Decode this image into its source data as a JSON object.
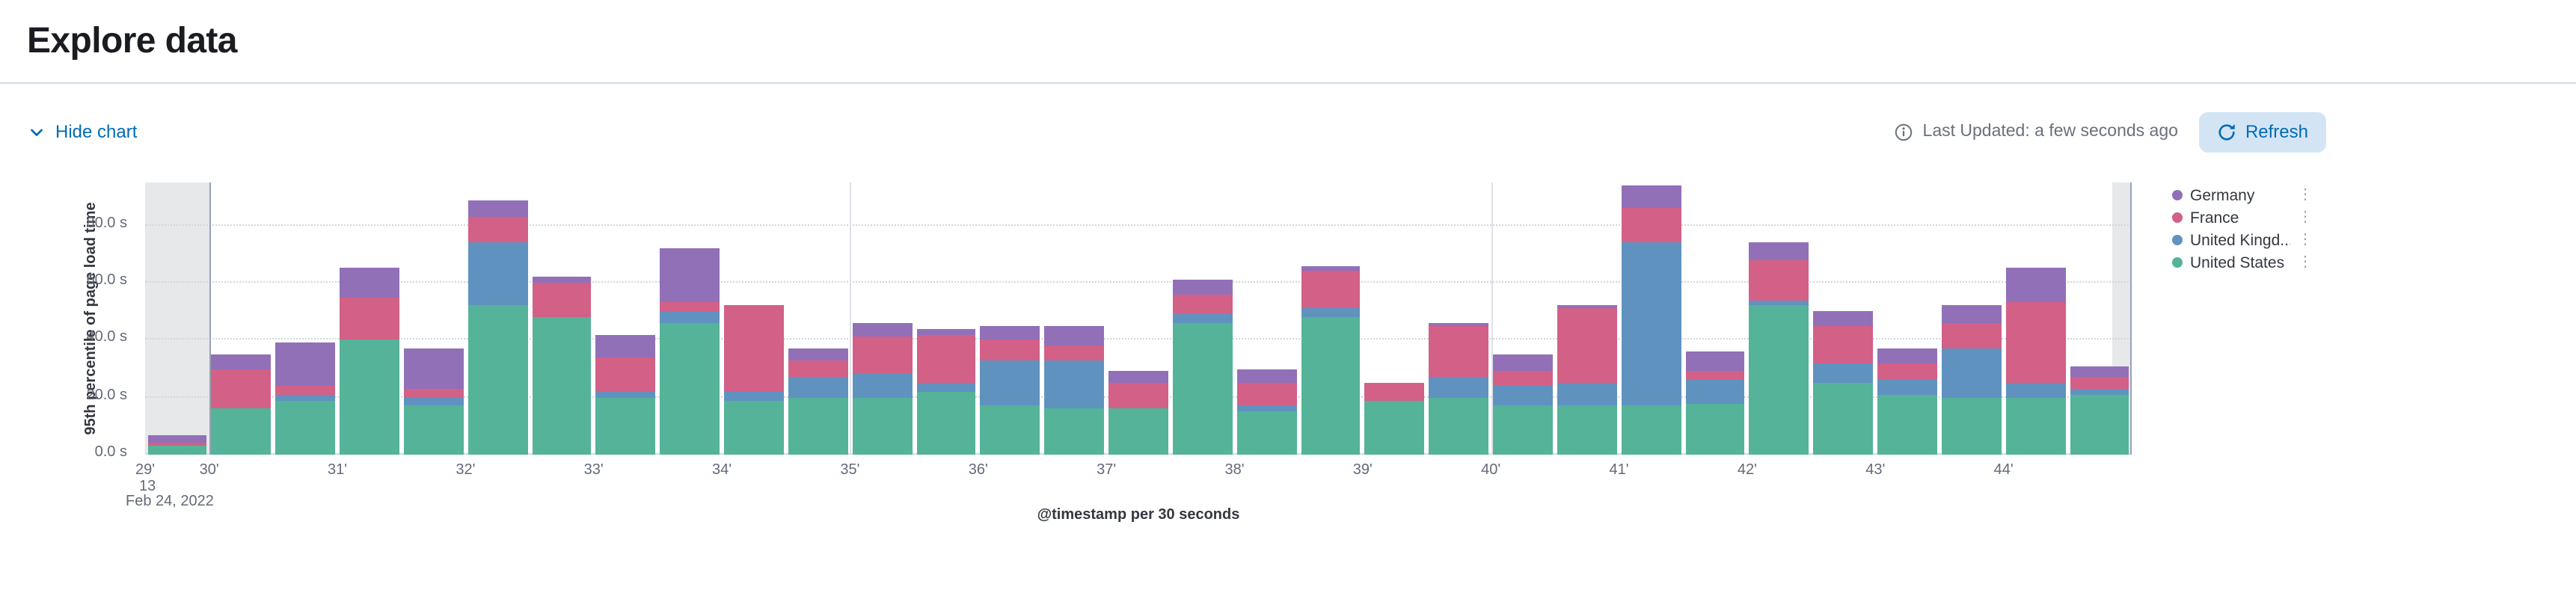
{
  "header": {
    "title": "Explore data"
  },
  "toolbar": {
    "hide_chart_label": "Hide chart",
    "last_updated_label": "Last Updated: a few seconds ago",
    "refresh_label": "Refresh",
    "accent_color": "#006BB4"
  },
  "chart_data": {
    "type": "bar",
    "stacked": true,
    "title": "",
    "xlabel": "@timestamp per 30 seconds",
    "ylabel": "95th percentile of page load time",
    "ylim": [
      0,
      95
    ],
    "grid": "horizontal-dotted",
    "legend_position": "right",
    "y_ticks": [
      {
        "value": 0,
        "label": "0.0 s"
      },
      {
        "value": 20,
        "label": "20.0 s"
      },
      {
        "value": 40,
        "label": "40.0 s"
      },
      {
        "value": 60,
        "label": "60.0 s"
      },
      {
        "value": 80,
        "label": "80.0 s"
      }
    ],
    "x": [
      "29:30",
      "30:00",
      "30:30",
      "31:00",
      "31:30",
      "32:00",
      "32:30",
      "33:00",
      "33:30",
      "34:00",
      "34:30",
      "35:00",
      "35:30",
      "36:00",
      "36:30",
      "37:00",
      "37:30",
      "38:00",
      "38:30",
      "39:00",
      "39:30",
      "40:00",
      "40:30",
      "41:00",
      "41:30",
      "42:00",
      "42:30",
      "43:00",
      "43:30",
      "44:00",
      "44:30"
    ],
    "x_ticks": [
      {
        "label": "29'",
        "slot": 0
      },
      {
        "label": "30'",
        "slot": 1
      },
      {
        "label": "31'",
        "slot": 3
      },
      {
        "label": "32'",
        "slot": 5
      },
      {
        "label": "33'",
        "slot": 7
      },
      {
        "label": "34'",
        "slot": 9
      },
      {
        "label": "35'",
        "slot": 11
      },
      {
        "label": "36'",
        "slot": 13
      },
      {
        "label": "37'",
        "slot": 15
      },
      {
        "label": "38'",
        "slot": 17
      },
      {
        "label": "39'",
        "slot": 19
      },
      {
        "label": "40'",
        "slot": 21
      },
      {
        "label": "41'",
        "slot": 23
      },
      {
        "label": "42'",
        "slot": 25
      },
      {
        "label": "43'",
        "slot": 27
      },
      {
        "label": "44'",
        "slot": 29
      }
    ],
    "x_first_extra": {
      "hour": "13",
      "date": "Feb 24, 2022"
    },
    "series": [
      {
        "name": "United States",
        "color": "#54B399",
        "values": [
          3,
          16,
          19,
          40,
          17,
          52,
          48,
          20,
          46,
          19,
          20,
          20,
          22,
          17,
          16,
          16,
          46,
          15,
          48,
          19,
          20,
          17,
          17,
          17,
          18,
          52,
          25,
          21,
          20,
          20,
          21
        ]
      },
      {
        "name": "United Kingdom",
        "color": "#6092C0",
        "values": [
          0,
          0,
          2,
          0,
          3,
          22,
          0,
          2,
          4,
          3,
          7,
          8,
          3,
          16,
          17,
          0,
          3,
          2,
          3,
          0,
          7,
          7,
          8,
          57,
          8,
          2,
          7,
          5,
          17,
          5,
          2
        ]
      },
      {
        "name": "France",
        "color": "#D36086",
        "values": [
          1,
          14,
          3,
          15,
          3,
          9,
          12,
          12,
          3,
          30,
          6,
          13,
          17,
          7,
          5,
          9,
          7,
          8,
          13,
          6,
          18,
          5,
          26,
          12,
          3,
          14,
          13,
          6,
          9,
          28,
          4
        ]
      },
      {
        "name": "Germany",
        "color": "#9170B8",
        "values": [
          3,
          5,
          15,
          10,
          14,
          6,
          2,
          8,
          19,
          0,
          4,
          5,
          2,
          5,
          7,
          4,
          5,
          5,
          2,
          0,
          1,
          6,
          1,
          8,
          7,
          6,
          5,
          5,
          6,
          12,
          4
        ]
      }
    ],
    "legend": [
      {
        "label": "Germany",
        "color": "#9170B8"
      },
      {
        "label": "France",
        "color": "#D36086"
      },
      {
        "label": "United Kingd...",
        "color": "#6092C0"
      },
      {
        "label": "United States",
        "color": "#54B399"
      }
    ],
    "vlines": [
      {
        "slot": 1,
        "strength": "dark"
      },
      {
        "slot": 11,
        "strength": "light"
      },
      {
        "slot": 21,
        "strength": "light"
      },
      {
        "slot": 31,
        "strength": "dark"
      }
    ],
    "bands": [
      {
        "start_slot": 0,
        "end_slot": 1
      },
      {
        "start_slot": 30.7,
        "end_slot": 31
      }
    ]
  }
}
